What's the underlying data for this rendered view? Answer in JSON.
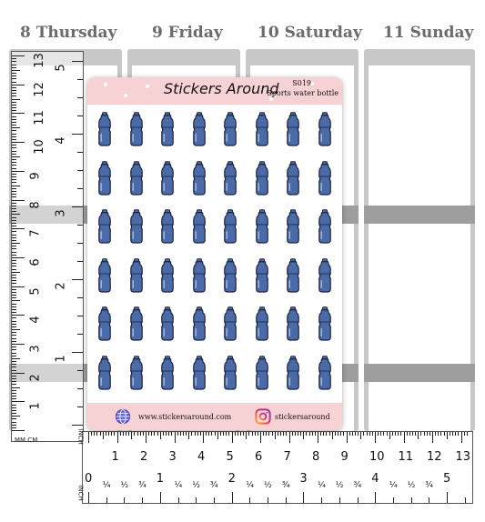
{
  "days": [
    "8 Thursday",
    "9 Friday",
    "10 Saturday",
    "11 Sunday"
  ],
  "sheet": {
    "brand": "Stickers Around",
    "code": "S019",
    "subtitle": "Sports water bottle",
    "website": "www.stickersaround.com",
    "instagram": "stickersaround",
    "sticker_icon": "water-bottle-icon",
    "sticker_rows": 6,
    "sticker_cols": 8,
    "colors": {
      "header": "#f7d2d4",
      "bottle": "#4a6aa8",
      "outline": "#1b2240"
    }
  },
  "vertical_ruler": {
    "cm_labels": [
      "13",
      "12",
      "11",
      "10",
      "9",
      "8",
      "7",
      "6",
      "5",
      "4",
      "3",
      "2",
      "1"
    ],
    "inch_labels": [
      "5",
      "4",
      "3",
      "2",
      "1"
    ],
    "unit_label": "MM CM"
  },
  "horizontal_ruler": {
    "cm_labels": [
      "1",
      "2",
      "3",
      "4",
      "5",
      "6",
      "7",
      "8",
      "9",
      "10",
      "11",
      "12",
      "13"
    ],
    "inch_labels": [
      "0",
      "1",
      "2",
      "3",
      "4",
      "5"
    ],
    "fraction_labels": [
      "¼",
      "½",
      "¾"
    ],
    "unit_top": "INCH",
    "unit_bottom": "INCH"
  }
}
